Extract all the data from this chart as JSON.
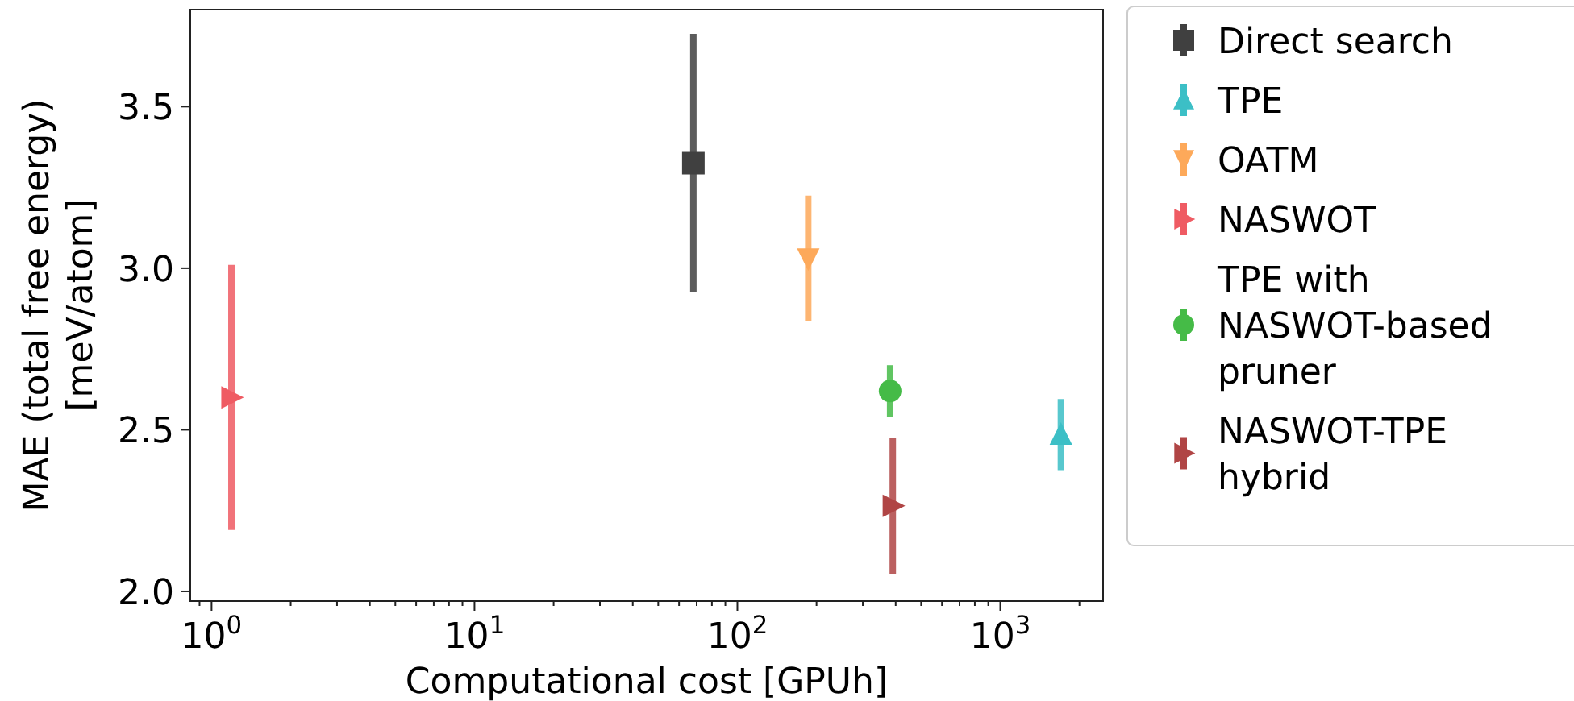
{
  "chart_data": {
    "type": "scatter",
    "xlabel": "Computational cost [GPUh]",
    "ylabel": "MAE (total free energy)\n[meV/atom]",
    "log": "x",
    "xlim": [
      0.83,
      2460
    ],
    "ylim": [
      1.97,
      3.8
    ],
    "xticks": [
      {
        "value": 1,
        "label": "10$^{0}$"
      },
      {
        "value": 10,
        "label": "10$^{1}$"
      },
      {
        "value": 100,
        "label": "10$^{2}$"
      },
      {
        "value": 1000,
        "label": "10$^{3}$"
      }
    ],
    "yticks": [
      {
        "value": 2,
        "label": "2.0"
      },
      {
        "value": 2.5,
        "label": "2.5"
      },
      {
        "value": 3,
        "label": "3.0"
      },
      {
        "value": 3.5,
        "label": "3.5"
      }
    ],
    "grid": false,
    "legend": "right",
    "series": [
      {
        "name": "Direct search",
        "color": "#404040",
        "marker": "square",
        "x": [
          68
        ],
        "values": [
          3.325
        ],
        "errors": [
          0.4
        ]
      },
      {
        "name": "TPE",
        "color": "#3cbfc6",
        "marker": "triangle",
        "x": [
          1700
        ],
        "values": [
          2.485
        ],
        "errors": [
          0.11
        ]
      },
      {
        "name": "OATM",
        "color": "#fda95a",
        "marker": "triangle-down",
        "x": [
          186
        ],
        "values": [
          3.03
        ],
        "errors": [
          0.195
        ]
      },
      {
        "name": "NASWOT",
        "color": "#ef5b63",
        "marker": "triangle-right",
        "x": [
          1.19
        ],
        "values": [
          2.6
        ],
        "errors": [
          0.41
        ]
      },
      {
        "name": "TPE with NASWOT-based pruner",
        "color": "#45bb47",
        "marker": "circle",
        "x": [
          381
        ],
        "values": [
          2.62
        ],
        "errors": [
          0.08
        ]
      },
      {
        "name": "NASWOT-TPE hybrid",
        "color": "#b04545",
        "marker": "triangle-right",
        "x": [
          390
        ],
        "values": [
          2.265
        ],
        "errors": [
          0.21
        ]
      }
    ]
  }
}
